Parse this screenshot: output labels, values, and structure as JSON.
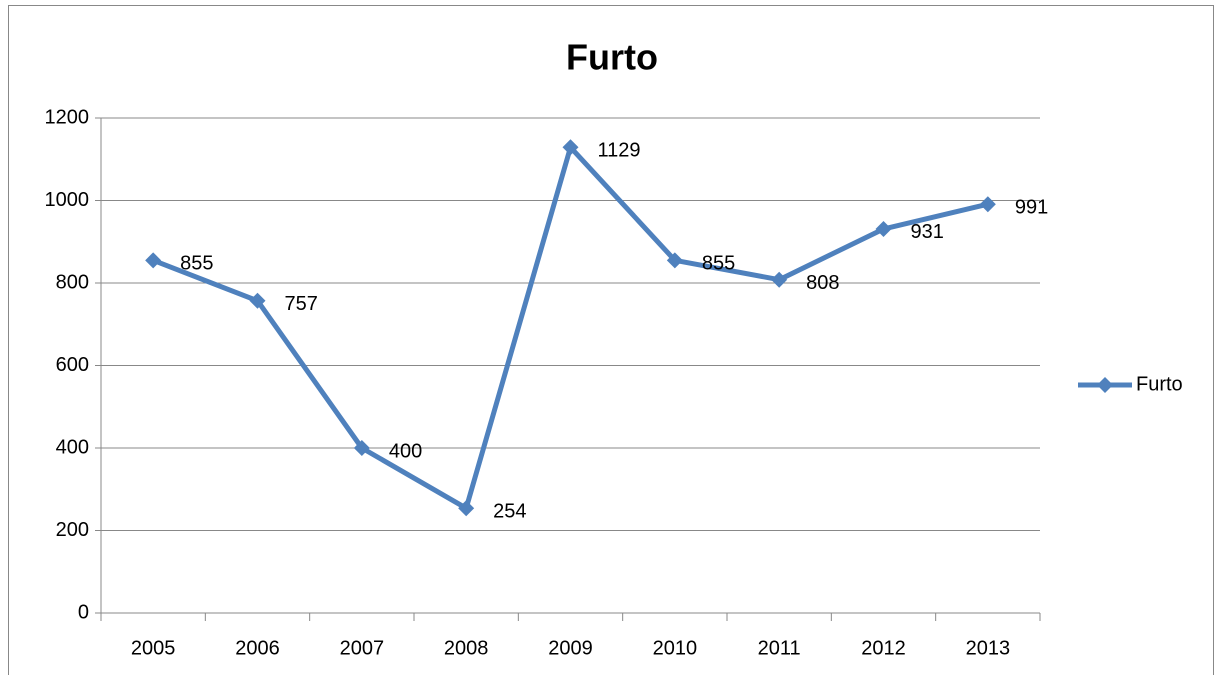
{
  "chart_data": {
    "type": "line",
    "title": "Furto",
    "categories": [
      "2005",
      "2006",
      "2007",
      "2008",
      "2009",
      "2010",
      "2011",
      "2012",
      "2013"
    ],
    "series": [
      {
        "name": "Furto",
        "color": "#4f81bd",
        "values": [
          855,
          757,
          400,
          254,
          1129,
          855,
          808,
          931,
          991
        ]
      }
    ],
    "ylim": [
      0,
      1200
    ],
    "yticks": [
      0,
      200,
      400,
      600,
      800,
      1000,
      1200
    ],
    "grid": true,
    "legend": "right",
    "data_labels": true
  }
}
